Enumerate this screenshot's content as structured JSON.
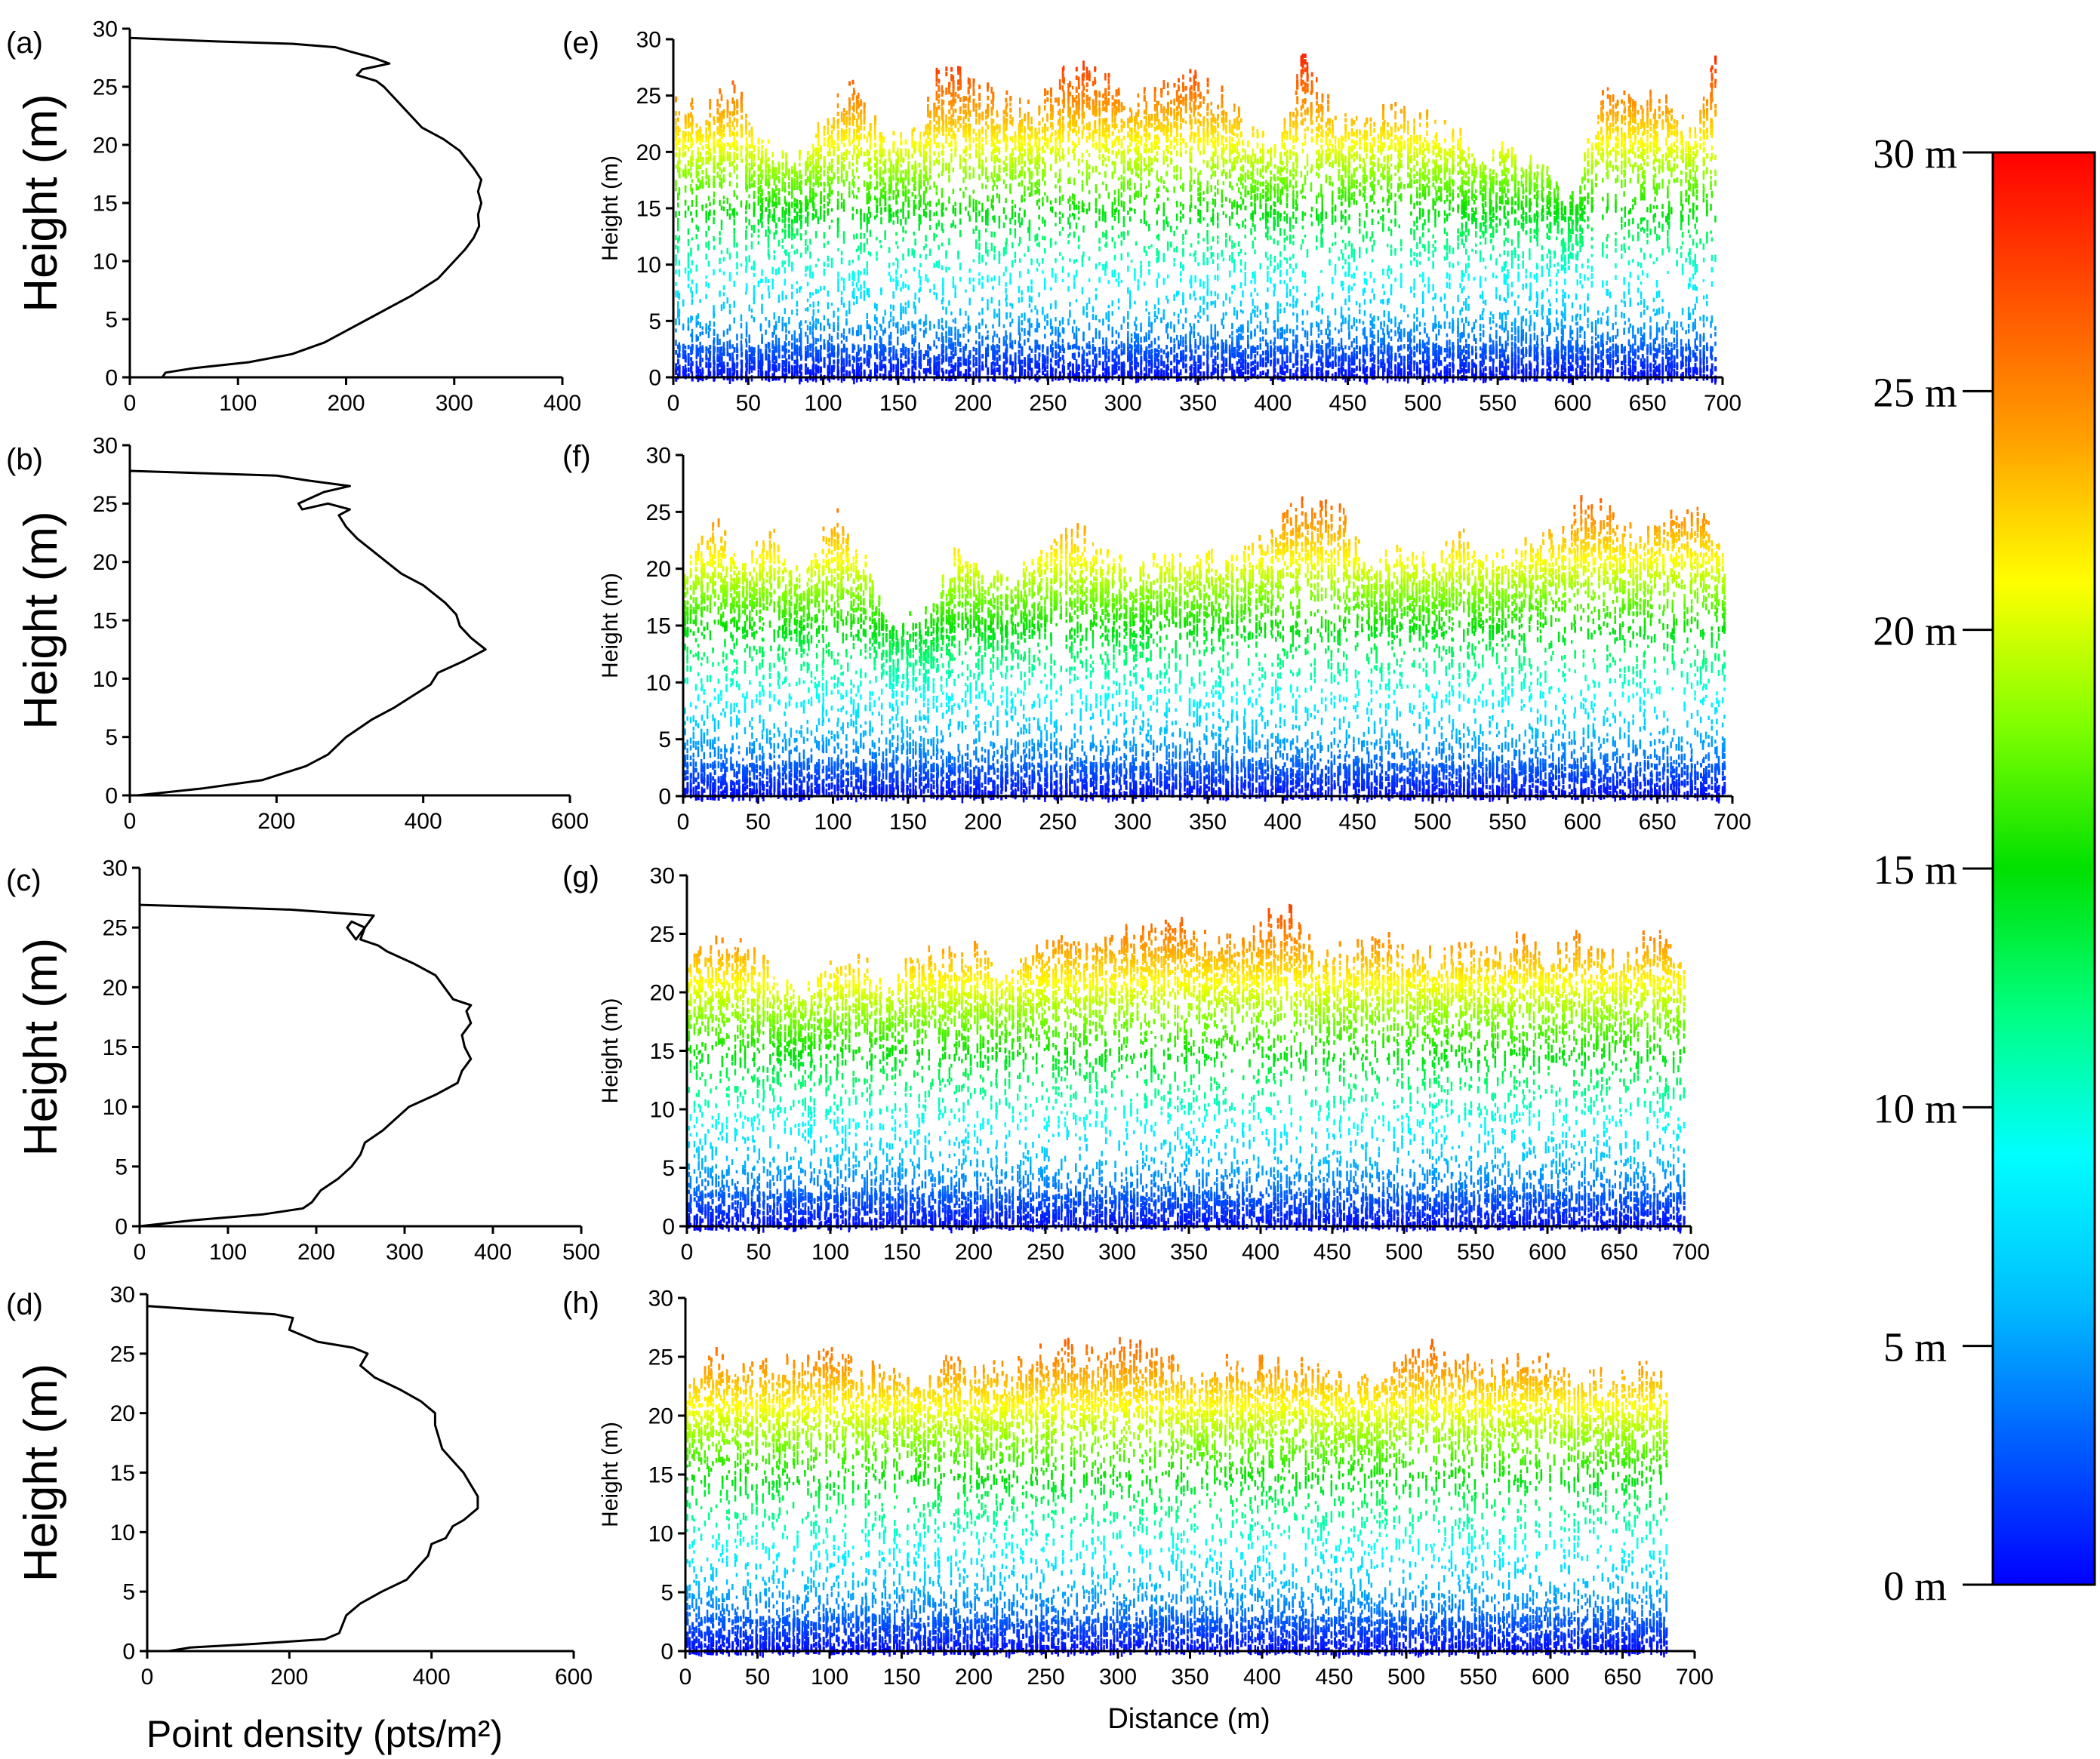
{
  "colors": {
    "axis": "#000000",
    "profile_line": "#000000",
    "colorbar_stops": [
      "#0000ff",
      "#0060ff",
      "#00c0ff",
      "#00ffff",
      "#00ff80",
      "#00e000",
      "#80ff00",
      "#ffff00",
      "#ffa000",
      "#ff5000",
      "#ff0000"
    ]
  },
  "x_label_bottom_left": "Point density (pts/m²)",
  "x_label_bottom_right": "Distance (m)",
  "colorbar": {
    "labels": [
      "30 m",
      "25 m",
      "20 m",
      "15 m",
      "10 m",
      "5 m",
      "0 m"
    ],
    "range": [
      0,
      30
    ]
  },
  "chart_data": [
    {
      "panel": "(a)",
      "type": "line",
      "xlabel": "",
      "ylabel": "Height (m)",
      "xlim": [
        0,
        400
      ],
      "ylim": [
        0,
        30
      ],
      "xticks": [
        "0",
        "100",
        "200",
        "300",
        "400"
      ],
      "yticks": [
        "0",
        "5",
        "10",
        "15",
        "20",
        "25",
        "30"
      ],
      "profile": [
        [
          30,
          0
        ],
        [
          33,
          0.4
        ],
        [
          60,
          0.8
        ],
        [
          110,
          1.3
        ],
        [
          150,
          2
        ],
        [
          180,
          3
        ],
        [
          200,
          4
        ],
        [
          220,
          5
        ],
        [
          240,
          6
        ],
        [
          260,
          7
        ],
        [
          285,
          8.5
        ],
        [
          300,
          10
        ],
        [
          310,
          11
        ],
        [
          318,
          12
        ],
        [
          323,
          13
        ],
        [
          322,
          14
        ],
        [
          325,
          15
        ],
        [
          322,
          16
        ],
        [
          325,
          17
        ],
        [
          318,
          18
        ],
        [
          305,
          19.5
        ],
        [
          290,
          20.5
        ],
        [
          270,
          21.5
        ],
        [
          255,
          23
        ],
        [
          245,
          24
        ],
        [
          235,
          25
        ],
        [
          228,
          25.5
        ],
        [
          210,
          26
        ],
        [
          215,
          26.5
        ],
        [
          240,
          27
        ],
        [
          225,
          27.5
        ],
        [
          205,
          28
        ],
        [
          190,
          28.4
        ],
        [
          150,
          28.7
        ],
        [
          80,
          28.9
        ],
        [
          0,
          29.2
        ]
      ]
    },
    {
      "panel": "(b)",
      "type": "line",
      "xlabel": "",
      "ylabel": "Height (m)",
      "xlim": [
        0,
        600
      ],
      "ylim": [
        0,
        30
      ],
      "xticks": [
        "0",
        "200",
        "400",
        "600"
      ],
      "yticks": [
        "0",
        "5",
        "10",
        "15",
        "20",
        "25",
        "30"
      ],
      "profile": [
        [
          10,
          0
        ],
        [
          100,
          0.6
        ],
        [
          180,
          1.3
        ],
        [
          240,
          2.5
        ],
        [
          270,
          3.5
        ],
        [
          295,
          5
        ],
        [
          330,
          6.5
        ],
        [
          360,
          7.5
        ],
        [
          385,
          8.5
        ],
        [
          410,
          9.5
        ],
        [
          420,
          10.5
        ],
        [
          455,
          11.5
        ],
        [
          485,
          12.5
        ],
        [
          465,
          13.5
        ],
        [
          450,
          14.5
        ],
        [
          445,
          15.5
        ],
        [
          430,
          16.5
        ],
        [
          400,
          18
        ],
        [
          370,
          19
        ],
        [
          350,
          20
        ],
        [
          330,
          21
        ],
        [
          310,
          22
        ],
        [
          295,
          23
        ],
        [
          285,
          24
        ],
        [
          300,
          24.5
        ],
        [
          270,
          25
        ],
        [
          235,
          24.5
        ],
        [
          230,
          25
        ],
        [
          265,
          26
        ],
        [
          300,
          26.5
        ],
        [
          240,
          27
        ],
        [
          200,
          27.4
        ],
        [
          100,
          27.6
        ],
        [
          0,
          27.8
        ]
      ]
    },
    {
      "panel": "(c)",
      "type": "line",
      "xlabel": "",
      "ylabel": "Height (m)",
      "xlim": [
        0,
        500
      ],
      "ylim": [
        0,
        30
      ],
      "xticks": [
        "0",
        "100",
        "200",
        "300",
        "400",
        "500"
      ],
      "yticks": [
        "0",
        "5",
        "10",
        "15",
        "20",
        "25",
        "30"
      ],
      "profile": [
        [
          0,
          0
        ],
        [
          60,
          0.5
        ],
        [
          140,
          1
        ],
        [
          185,
          1.5
        ],
        [
          195,
          2
        ],
        [
          205,
          3
        ],
        [
          225,
          4
        ],
        [
          240,
          5
        ],
        [
          250,
          6
        ],
        [
          255,
          7
        ],
        [
          275,
          8
        ],
        [
          290,
          9
        ],
        [
          305,
          10
        ],
        [
          335,
          11
        ],
        [
          360,
          12
        ],
        [
          365,
          13
        ],
        [
          375,
          14
        ],
        [
          368,
          15
        ],
        [
          365,
          16
        ],
        [
          375,
          17
        ],
        [
          370,
          18
        ],
        [
          375,
          18.5
        ],
        [
          355,
          19
        ],
        [
          345,
          20
        ],
        [
          335,
          21
        ],
        [
          310,
          22
        ],
        [
          280,
          23
        ],
        [
          270,
          23.5
        ],
        [
          250,
          24
        ],
        [
          255,
          25
        ],
        [
          240,
          25.5
        ],
        [
          235,
          25
        ],
        [
          245,
          24
        ],
        [
          260,
          25.5
        ],
        [
          265,
          26
        ],
        [
          170,
          26.5
        ],
        [
          50,
          26.8
        ],
        [
          0,
          26.9
        ]
      ]
    },
    {
      "panel": "(d)",
      "type": "line",
      "xlabel": "",
      "ylabel": "Height (m)",
      "xlim": [
        0,
        600
      ],
      "ylim": [
        0,
        30
      ],
      "xticks": [
        "0",
        "200",
        "400",
        "600"
      ],
      "yticks": [
        "0",
        "5",
        "10",
        "15",
        "20",
        "25",
        "30"
      ],
      "profile": [
        [
          30,
          0
        ],
        [
          60,
          0.3
        ],
        [
          150,
          0.6
        ],
        [
          250,
          1
        ],
        [
          270,
          1.5
        ],
        [
          280,
          3
        ],
        [
          300,
          4
        ],
        [
          330,
          5
        ],
        [
          365,
          6
        ],
        [
          380,
          7
        ],
        [
          395,
          8
        ],
        [
          400,
          9
        ],
        [
          420,
          9.5
        ],
        [
          430,
          10.5
        ],
        [
          445,
          11
        ],
        [
          465,
          12
        ],
        [
          465,
          13
        ],
        [
          455,
          14
        ],
        [
          445,
          15
        ],
        [
          430,
          16
        ],
        [
          415,
          17
        ],
        [
          410,
          18
        ],
        [
          405,
          19
        ],
        [
          405,
          20
        ],
        [
          385,
          21
        ],
        [
          355,
          22
        ],
        [
          320,
          23
        ],
        [
          300,
          24
        ],
        [
          310,
          25
        ],
        [
          290,
          25.5
        ],
        [
          240,
          26
        ],
        [
          220,
          26.5
        ],
        [
          200,
          27
        ],
        [
          205,
          28
        ],
        [
          180,
          28.3
        ],
        [
          100,
          28.6
        ],
        [
          0,
          29
        ]
      ]
    },
    {
      "panel": "(e)",
      "type": "scatter",
      "xlabel": "",
      "ylabel": "Height (m)",
      "xlim": [
        0,
        700
      ],
      "ylim": [
        0,
        30
      ],
      "xticks": [
        "0",
        "50",
        "100",
        "150",
        "200",
        "250",
        "300",
        "350",
        "400",
        "450",
        "500",
        "550",
        "600",
        "650",
        "700"
      ],
      "yticks": [
        "0",
        "5",
        "10",
        "15",
        "20",
        "25",
        "30"
      ],
      "canopy_top_profile": [
        [
          0,
          26
        ],
        [
          20,
          25
        ],
        [
          40,
          27
        ],
        [
          60,
          22
        ],
        [
          80,
          21
        ],
        [
          100,
          24
        ],
        [
          120,
          27
        ],
        [
          140,
          22
        ],
        [
          160,
          23
        ],
        [
          180,
          29
        ],
        [
          200,
          27
        ],
        [
          220,
          26
        ],
        [
          240,
          25
        ],
        [
          260,
          28
        ],
        [
          280,
          29
        ],
        [
          300,
          27
        ],
        [
          320,
          26
        ],
        [
          340,
          28
        ],
        [
          360,
          27
        ],
        [
          380,
          24
        ],
        [
          400,
          21
        ],
        [
          420,
          30
        ],
        [
          440,
          24
        ],
        [
          460,
          24
        ],
        [
          480,
          25
        ],
        [
          500,
          24
        ],
        [
          520,
          23
        ],
        [
          540,
          20
        ],
        [
          560,
          22
        ],
        [
          580,
          20
        ],
        [
          600,
          17
        ],
        [
          620,
          27
        ],
        [
          640,
          26
        ],
        [
          660,
          26
        ],
        [
          680,
          23
        ],
        [
          695,
          29
        ]
      ]
    },
    {
      "panel": "(f)",
      "type": "scatter",
      "xlabel": "",
      "ylabel": "Height (m)",
      "xlim": [
        0,
        700
      ],
      "ylim": [
        0,
        30
      ],
      "xticks": [
        "0",
        "50",
        "100",
        "150",
        "200",
        "250",
        "300",
        "350",
        "400",
        "450",
        "500",
        "550",
        "600",
        "650",
        "700"
      ],
      "yticks": [
        "0",
        "5",
        "10",
        "15",
        "20",
        "25",
        "30"
      ],
      "canopy_top_profile": [
        [
          0,
          21
        ],
        [
          20,
          25
        ],
        [
          40,
          22
        ],
        [
          60,
          24
        ],
        [
          80,
          20
        ],
        [
          100,
          26
        ],
        [
          120,
          22
        ],
        [
          140,
          16
        ],
        [
          160,
          17
        ],
        [
          180,
          22
        ],
        [
          200,
          21
        ],
        [
          220,
          20
        ],
        [
          240,
          23
        ],
        [
          260,
          25
        ],
        [
          280,
          22
        ],
        [
          300,
          21
        ],
        [
          320,
          23
        ],
        [
          340,
          22
        ],
        [
          360,
          22
        ],
        [
          380,
          23
        ],
        [
          400,
          26
        ],
        [
          420,
          27
        ],
        [
          440,
          26
        ],
        [
          460,
          21
        ],
        [
          480,
          23
        ],
        [
          500,
          22
        ],
        [
          520,
          24
        ],
        [
          540,
          22
        ],
        [
          560,
          23
        ],
        [
          580,
          24
        ],
        [
          600,
          27
        ],
        [
          620,
          26
        ],
        [
          640,
          24
        ],
        [
          660,
          26
        ],
        [
          680,
          26
        ],
        [
          695,
          22
        ]
      ]
    },
    {
      "panel": "(g)",
      "type": "scatter",
      "xlabel": "",
      "ylabel": "Height (m)",
      "xlim": [
        0,
        700
      ],
      "ylim": [
        0,
        30
      ],
      "xticks": [
        "0",
        "50",
        "100",
        "150",
        "200",
        "250",
        "300",
        "350",
        "400",
        "450",
        "500",
        "550",
        "600",
        "650",
        "700"
      ],
      "yticks": [
        "0",
        "5",
        "10",
        "15",
        "20",
        "25",
        "30"
      ],
      "canopy_top_profile": [
        [
          0,
          24
        ],
        [
          20,
          25
        ],
        [
          40,
          26
        ],
        [
          60,
          22
        ],
        [
          80,
          21
        ],
        [
          100,
          23
        ],
        [
          120,
          24
        ],
        [
          140,
          21
        ],
        [
          160,
          25
        ],
        [
          180,
          24
        ],
        [
          200,
          25
        ],
        [
          220,
          22
        ],
        [
          240,
          25
        ],
        [
          260,
          26
        ],
        [
          280,
          25
        ],
        [
          300,
          26
        ],
        [
          320,
          26
        ],
        [
          340,
          27
        ],
        [
          360,
          26
        ],
        [
          380,
          25
        ],
        [
          400,
          27
        ],
        [
          420,
          28
        ],
        [
          440,
          24
        ],
        [
          460,
          25
        ],
        [
          480,
          26
        ],
        [
          500,
          25
        ],
        [
          520,
          24
        ],
        [
          540,
          25
        ],
        [
          560,
          24
        ],
        [
          580,
          26
        ],
        [
          600,
          24
        ],
        [
          620,
          26
        ],
        [
          640,
          24
        ],
        [
          660,
          25
        ],
        [
          680,
          26
        ],
        [
          695,
          23
        ]
      ]
    },
    {
      "panel": "(h)",
      "type": "scatter",
      "xlabel": "Distance (m)",
      "ylabel": "Height (m)",
      "xlim": [
        0,
        700
      ],
      "ylim": [
        0,
        30
      ],
      "xticks": [
        "0",
        "50",
        "100",
        "150",
        "200",
        "250",
        "300",
        "350",
        "400",
        "450",
        "500",
        "550",
        "600",
        "650",
        "700"
      ],
      "yticks": [
        "0",
        "5",
        "10",
        "15",
        "20",
        "25",
        "30"
      ],
      "canopy_top_profile": [
        [
          0,
          24
        ],
        [
          20,
          26
        ],
        [
          40,
          25
        ],
        [
          60,
          25
        ],
        [
          80,
          26
        ],
        [
          100,
          27
        ],
        [
          120,
          25
        ],
        [
          140,
          25
        ],
        [
          160,
          24
        ],
        [
          180,
          26
        ],
        [
          200,
          25
        ],
        [
          220,
          25
        ],
        [
          240,
          26
        ],
        [
          260,
          27
        ],
        [
          280,
          26
        ],
        [
          300,
          27
        ],
        [
          320,
          27
        ],
        [
          340,
          25
        ],
        [
          360,
          24
        ],
        [
          380,
          26
        ],
        [
          400,
          26
        ],
        [
          420,
          25
        ],
        [
          440,
          25
        ],
        [
          460,
          24
        ],
        [
          480,
          24
        ],
        [
          500,
          26
        ],
        [
          520,
          27
        ],
        [
          540,
          26
        ],
        [
          560,
          25
        ],
        [
          580,
          26
        ],
        [
          600,
          26
        ],
        [
          620,
          25
        ],
        [
          640,
          24
        ],
        [
          660,
          25
        ],
        [
          680,
          24
        ]
      ]
    }
  ]
}
